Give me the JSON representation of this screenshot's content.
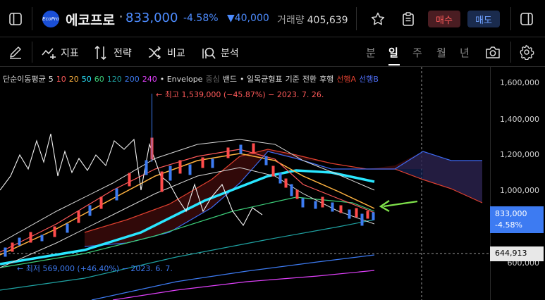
{
  "header": {
    "logo_text": "EcoPro",
    "stock_name": "에코프로",
    "price": "833,000",
    "change_pct": "-4.58%",
    "change_abs": "▼40,000",
    "volume_label": "거래량",
    "volume_value": "405,639",
    "buy_label": "매수",
    "sell_label": "매도",
    "accent_color": "#4d8cff"
  },
  "toolbar": {
    "indicator_label": "지표",
    "strategy_label": "전략",
    "compare_label": "비교",
    "analysis_label": "분석",
    "periods": [
      "분",
      "일",
      "주",
      "월",
      "년"
    ],
    "active_period": "일"
  },
  "legend": {
    "ma_label": "단순이동평균",
    "ma_periods": [
      {
        "value": "5",
        "color": "#e6e6e6"
      },
      {
        "value": "10",
        "color": "#ff5a5a"
      },
      {
        "value": "20",
        "color": "#ffb340"
      },
      {
        "value": "50",
        "color": "#29e6ff"
      },
      {
        "value": "60",
        "color": "#3ccf7a"
      },
      {
        "value": "120",
        "color": "#1fa3a3"
      },
      {
        "value": "200",
        "color": "#3d7bf2"
      },
      {
        "value": "240",
        "color": "#e040fb"
      }
    ],
    "envelope_label": "• Envelope",
    "envelope_sub": "중심",
    "band_label": "밴드",
    "ichimoku_label": "• 일목균형표",
    "ichimoku_items": [
      "기준",
      "전환",
      "후행"
    ],
    "span_a": "선행A",
    "span_b": "선행B"
  },
  "annotations": {
    "high": "← 최고 1,539,000 (−45.87%) − 2023. 7. 26.",
    "low": "← 최저 569,000 (+46.40%) − 2023. 6. 7."
  },
  "axis": {
    "labels": [
      "1,600,000",
      "1,400,000",
      "1,200,000",
      "1,000,000",
      "600,000"
    ],
    "current_price": "833,000",
    "current_change": "-4.58%",
    "line_value": "644,913"
  }
}
